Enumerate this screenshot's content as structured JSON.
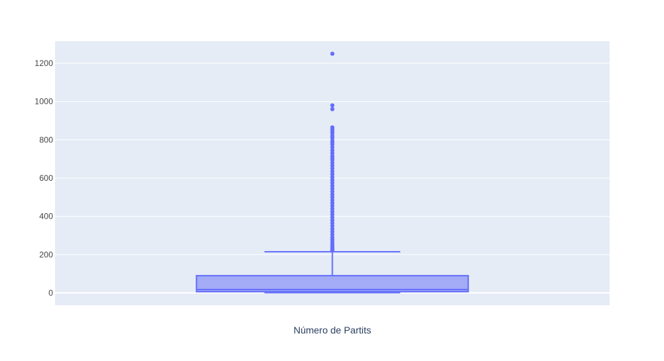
{
  "chart_data": {
    "type": "box",
    "title": "",
    "xlabel": "Número de Partits",
    "ylabel": "",
    "ylim": [
      -65,
      1315
    ],
    "yticks": [
      0,
      200,
      400,
      600,
      800,
      1000,
      1200
    ],
    "grid": true,
    "colors": {
      "plot_bg": "#e5ecf6",
      "grid": "#ffffff",
      "box_fill": "#a3abf6",
      "box_line": "#636efa",
      "tick_text": "#444444",
      "axis_title": "#2a3f5f"
    },
    "series": [
      {
        "name": "",
        "box": {
          "min": 1,
          "q1": 6,
          "median": 17,
          "q3": 90,
          "upper_fence": 215
        },
        "outliers": [
          1250,
          980,
          960,
          865,
          855,
          845,
          835,
          820,
          810,
          795,
          785,
          775,
          760,
          745,
          730,
          715,
          705,
          695,
          680,
          665,
          650,
          635,
          620,
          605,
          590,
          575,
          560,
          545,
          530,
          515,
          500,
          485,
          470,
          455,
          440,
          425,
          410,
          395,
          380,
          365,
          350,
          335,
          320,
          305,
          290,
          278,
          266,
          255,
          245,
          236,
          228,
          221
        ]
      }
    ]
  }
}
